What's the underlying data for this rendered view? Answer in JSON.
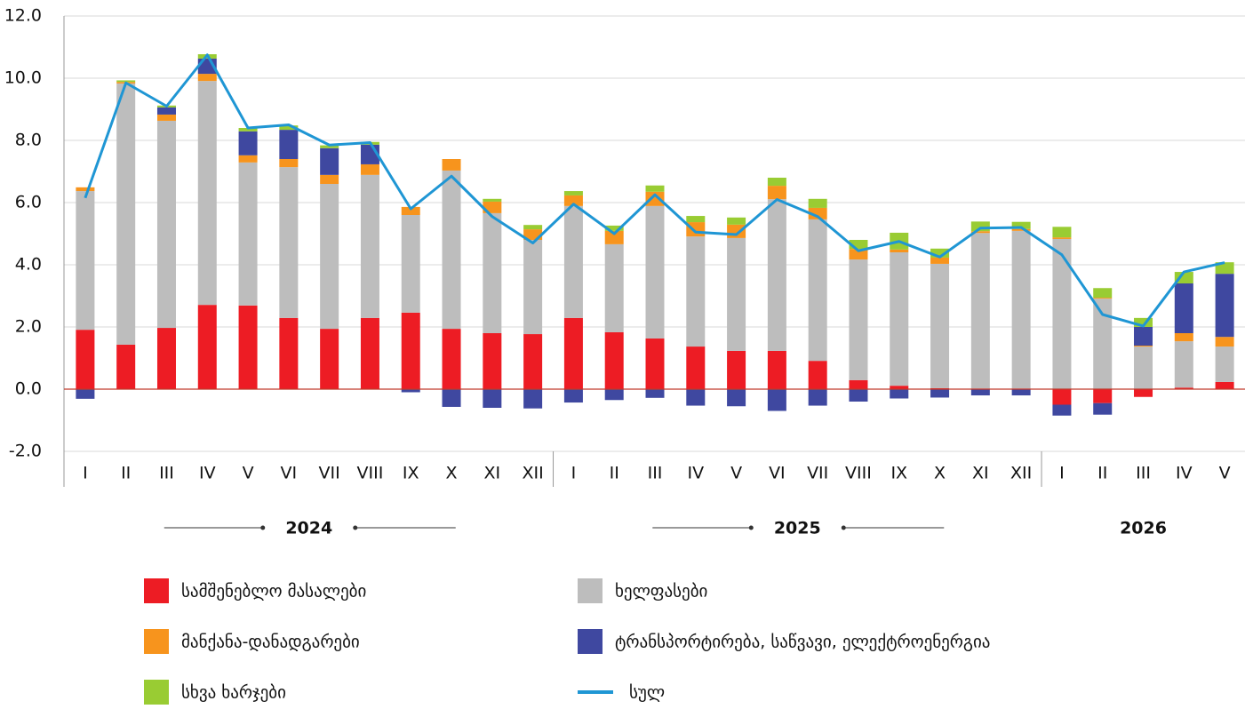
{
  "chart_data": {
    "type": "stacked-bar",
    "categories": [
      "I",
      "II",
      "III",
      "IV",
      "V",
      "VI",
      "VII",
      "VIII",
      "IX",
      "X",
      "XI",
      "XII",
      "I",
      "II",
      "III",
      "IV",
      "V",
      "VI",
      "VII",
      "VIII",
      "IX",
      "X",
      "XI",
      "XII",
      "I",
      "II",
      "III",
      "IV",
      "V"
    ],
    "groups": [
      "2024",
      "2025",
      "2026"
    ],
    "ylim": [
      -2,
      12
    ],
    "yticks": [
      {
        "value": -2,
        "label": "-2.0"
      },
      {
        "value": 0,
        "label": "0.0"
      },
      {
        "value": 2,
        "label": "2.0"
      },
      {
        "value": 4,
        "label": "4.0"
      },
      {
        "value": 6,
        "label": "6.0"
      },
      {
        "value": 8,
        "label": "8.0"
      },
      {
        "value": 10,
        "label": "10.0"
      },
      {
        "value": 12,
        "label": "12.0"
      }
    ],
    "grid": true,
    "series": [
      {
        "name": "სამშენებლო მასალები",
        "color": "#ed1c24",
        "values": [
          1.91,
          1.43,
          1.97,
          2.71,
          2.69,
          2.29,
          1.94,
          2.29,
          2.46,
          1.94,
          1.8,
          1.77,
          2.29,
          1.83,
          1.63,
          1.37,
          1.23,
          1.23,
          0.91,
          0.29,
          0.11,
          0.03,
          0.02,
          0.02,
          -0.5,
          -0.45,
          -0.25,
          0.05,
          0.23
        ]
      },
      {
        "name": "ხელფასები",
        "color": "#bdbdbd",
        "values": [
          4.46,
          8.4,
          6.66,
          7.2,
          4.6,
          4.85,
          4.66,
          4.6,
          3.14,
          5.09,
          3.86,
          3.03,
          3.6,
          2.83,
          4.26,
          3.54,
          3.63,
          4.88,
          4.55,
          3.88,
          4.29,
          4.0,
          5.0,
          5.07,
          4.83,
          2.91,
          1.37,
          1.49,
          1.14
        ]
      },
      {
        "name": "მანქანა-დანადგარები",
        "color": "#f7941d",
        "values": [
          0.12,
          0.05,
          0.2,
          0.23,
          0.23,
          0.26,
          0.29,
          0.34,
          0.26,
          0.37,
          0.37,
          0.34,
          0.34,
          0.43,
          0.46,
          0.46,
          0.43,
          0.43,
          0.37,
          0.34,
          0.09,
          0.2,
          0.06,
          0.06,
          0.05,
          0.03,
          0.03,
          0.26,
          0.31
        ]
      },
      {
        "name": "ტრანსპორტირება, საწვავი, ელექტროენერგია",
        "color": "#3f48a0",
        "values": [
          -0.31,
          0,
          0.23,
          0.49,
          0.77,
          0.94,
          0.86,
          0.63,
          -0.1,
          -0.57,
          -0.6,
          -0.62,
          -0.43,
          -0.35,
          -0.28,
          -0.53,
          -0.55,
          -0.7,
          -0.53,
          -0.4,
          -0.3,
          -0.27,
          -0.2,
          -0.2,
          -0.35,
          -0.37,
          0.6,
          1.6,
          2.03
        ]
      },
      {
        "name": "სხვა ხარჯები",
        "color": "#99cc33",
        "values": [
          0,
          0.05,
          0.06,
          0.14,
          0.11,
          0.14,
          0.09,
          0.09,
          0,
          0,
          0.09,
          0.14,
          0.14,
          0.17,
          0.2,
          0.2,
          0.23,
          0.26,
          0.29,
          0.29,
          0.54,
          0.29,
          0.31,
          0.23,
          0.34,
          0.31,
          0.29,
          0.37,
          0.37
        ]
      },
      {
        "name": "სულ",
        "type": "line",
        "color": "#1f96d4",
        "values": [
          6.15,
          9.85,
          9.1,
          10.75,
          8.4,
          8.5,
          7.85,
          7.93,
          5.8,
          6.85,
          5.55,
          4.7,
          5.95,
          5.0,
          6.25,
          5.05,
          4.97,
          6.1,
          5.55,
          4.45,
          4.75,
          4.25,
          5.18,
          5.2,
          4.32,
          2.4,
          2.03,
          3.77,
          4.07
        ]
      }
    ]
  }
}
